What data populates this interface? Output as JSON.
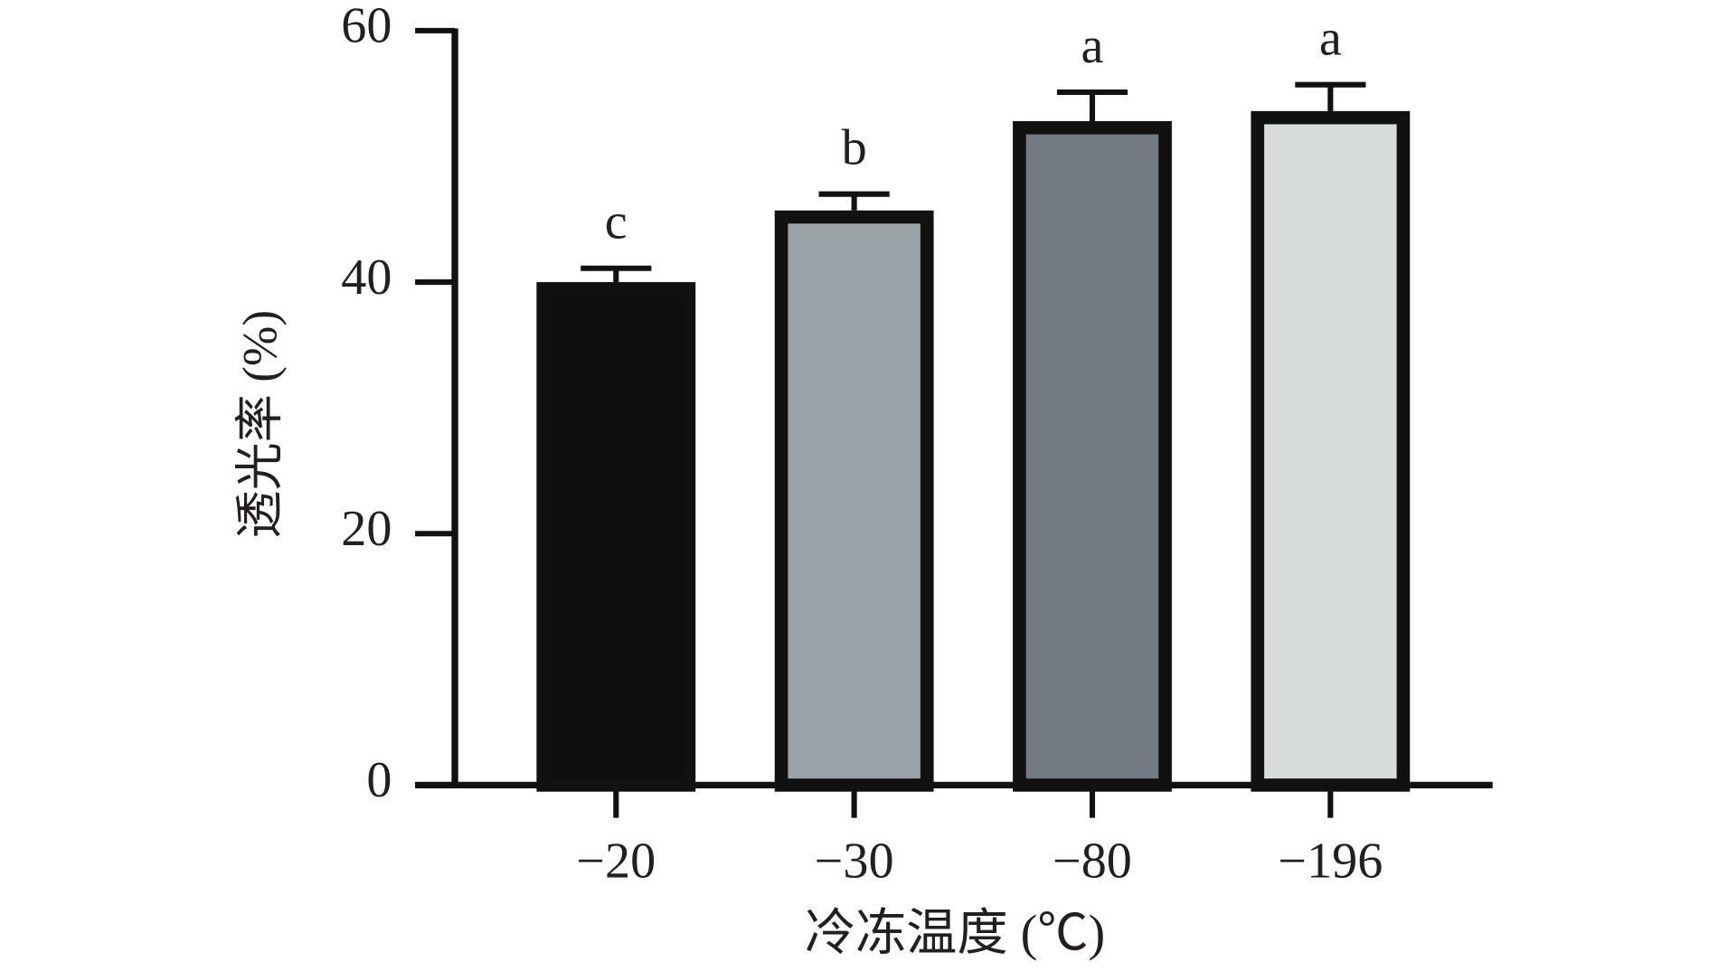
{
  "chart_data": {
    "type": "bar",
    "x_label": "冷冻温度 (℃)",
    "y_label": "透光率 (%)",
    "categories": [
      "−20",
      "−30",
      "−80",
      "−196"
    ],
    "values": [
      40,
      45.7,
      52.8,
      53.6
    ],
    "errors": [
      1.1,
      1.3,
      2.3,
      2.1
    ],
    "significance": [
      "c",
      "b",
      "a",
      "a"
    ],
    "colors": [
      "#0d0e0d",
      "#9ba3a8",
      "#737983",
      "#d8dcd9"
    ],
    "ylim": [
      0,
      60
    ],
    "yticks": [
      0,
      20,
      40,
      60
    ]
  }
}
